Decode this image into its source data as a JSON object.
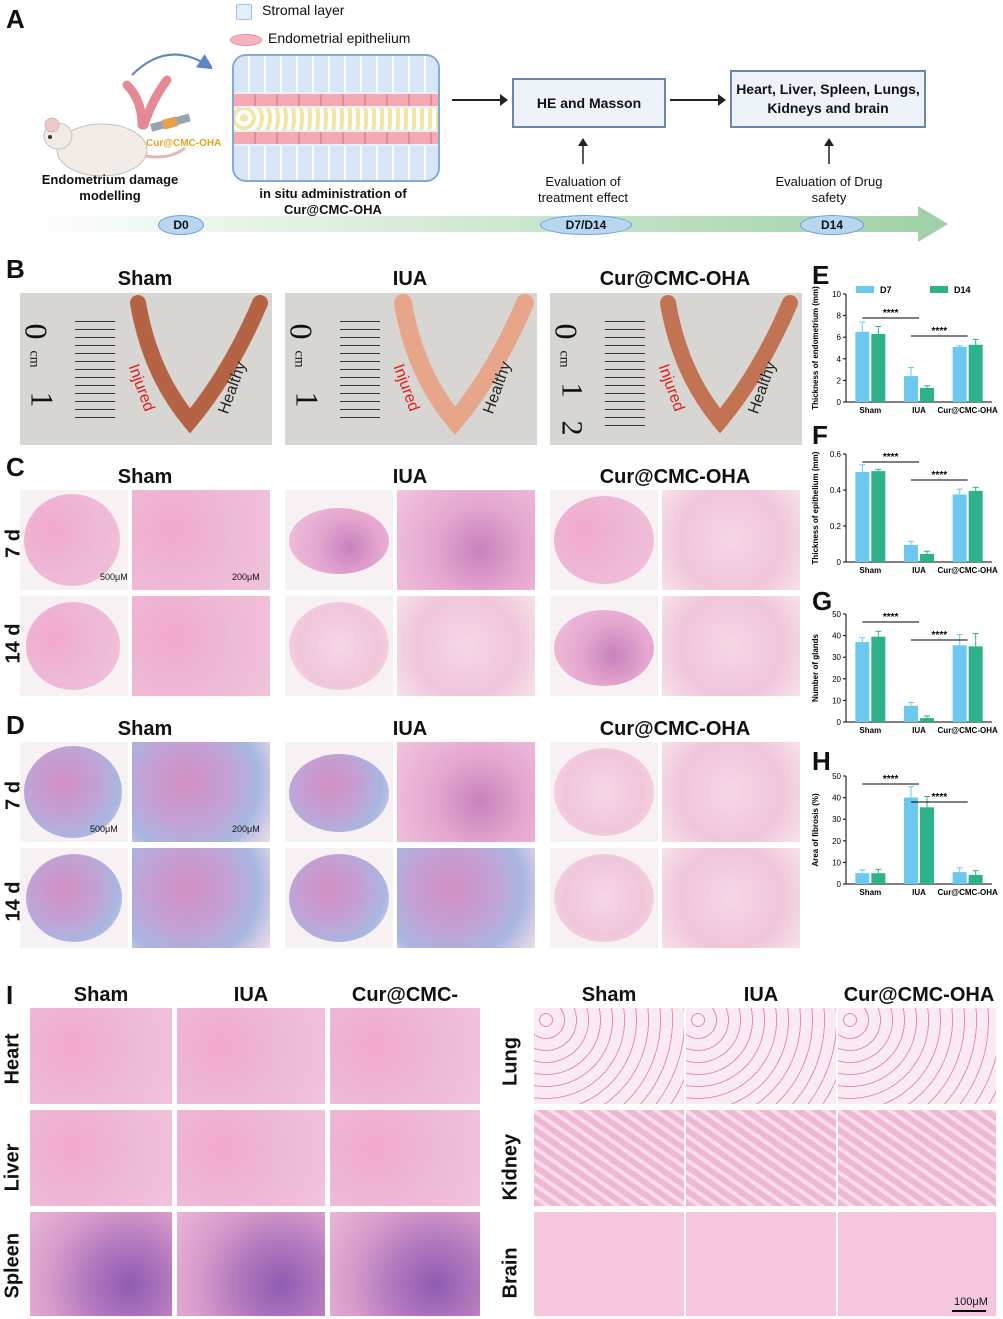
{
  "panels": {
    "A": {
      "label": "A",
      "legend": {
        "stromal": "Stromal layer",
        "epithelium": "Endometrial epithelium"
      },
      "syringe_label": "Cur@CMC-OHA",
      "mouse_caption": "Endometrium damage modelling",
      "insitu_caption": "in situ administration of Cur@CMC-OHA",
      "box_he": "HE and Masson",
      "box_organs": "Heart, Liver, Spleen, Lungs, Kidneys and brain",
      "eval_treatment": "Evaluation of treatment effect",
      "eval_drug": "Evaluation of Drug safety",
      "timeline": [
        "D0",
        "D7/D14",
        "D14"
      ],
      "colors": {
        "timeline": "#9fd0a5",
        "box_border": "#6d86ab",
        "syringe_text": "#e6a21f"
      }
    },
    "B": {
      "label": "B",
      "headers": [
        "Sham",
        "IUA",
        "Cur@CMC-OHA"
      ],
      "ruler_unit": "cm",
      "ruler_ticks": [
        "0",
        "1",
        "2"
      ],
      "injured": "Injured",
      "healthy": "Healthy"
    },
    "C": {
      "label": "C",
      "headers": [
        "Sham",
        "IUA",
        "Cur@CMC-OHA"
      ],
      "rows": [
        "7 d",
        "14 d"
      ],
      "scale_large": "500μM",
      "scale_small": "200μM"
    },
    "D": {
      "label": "D",
      "headers": [
        "Sham",
        "IUA",
        "Cur@CMC-OHA"
      ],
      "rows": [
        "7 d",
        "14 d"
      ],
      "scale_large": "500μM",
      "scale_small": "200μM"
    },
    "I": {
      "label": "I",
      "headers_left": [
        "Sham",
        "IUA",
        "Cur@CMC-OHA"
      ],
      "headers_right": [
        "Sham",
        "IUA",
        "Cur@CMC-OHA"
      ],
      "rows_left": [
        "Heart",
        "Liver",
        "Spleen"
      ],
      "rows_right": [
        "Lung",
        "Kidney",
        "Brain"
      ],
      "scale": "100μM"
    }
  },
  "chart_data": [
    {
      "panel": "E",
      "type": "bar",
      "categories": [
        "Sham",
        "IUA",
        "Cur@CMC-OHA"
      ],
      "series": [
        {
          "name": "D7",
          "values": [
            6.5,
            2.4,
            5.1
          ],
          "errors": [
            0.9,
            0.8,
            0.1
          ]
        },
        {
          "name": "D14",
          "values": [
            6.3,
            1.3,
            5.3
          ],
          "errors": [
            0.7,
            0.2,
            0.5
          ]
        }
      ],
      "ylabel": "Thickness of endometrium (mm)",
      "ylim": [
        0,
        10
      ],
      "yticks": [
        0,
        2,
        4,
        6,
        8,
        10
      ],
      "legend": "top",
      "significance": [
        {
          "from": 0,
          "to": 1,
          "text": "****"
        },
        {
          "from": 1,
          "to": 2,
          "text": "****"
        }
      ]
    },
    {
      "panel": "F",
      "type": "bar",
      "categories": [
        "Sham",
        "IUA",
        "Cur@CMC-OHA"
      ],
      "series": [
        {
          "name": "D7",
          "values": [
            0.5,
            0.095,
            0.375
          ],
          "errors": [
            0.04,
            0.02,
            0.03
          ]
        },
        {
          "name": "D14",
          "values": [
            0.505,
            0.045,
            0.395
          ],
          "errors": [
            0.01,
            0.015,
            0.02
          ]
        }
      ],
      "ylabel": "Thickness of epithelium (mm)",
      "ylim": [
        0,
        0.6
      ],
      "yticks": [
        0.0,
        0.2,
        0.4,
        0.6
      ],
      "significance": [
        {
          "from": 0,
          "to": 1,
          "text": "****"
        },
        {
          "from": 1,
          "to": 2,
          "text": "****"
        }
      ]
    },
    {
      "panel": "G",
      "type": "bar",
      "categories": [
        "Sham",
        "IUA",
        "Cur@CMC-OHA"
      ],
      "series": [
        {
          "name": "D7",
          "values": [
            37,
            7.5,
            35.5
          ],
          "errors": [
            2,
            1.5,
            5
          ]
        },
        {
          "name": "D14",
          "values": [
            39.5,
            1.8,
            35
          ],
          "errors": [
            2.5,
            1,
            6
          ]
        }
      ],
      "ylabel": "Number of glands",
      "ylim": [
        0,
        50
      ],
      "yticks": [
        0,
        10,
        20,
        30,
        40,
        50
      ],
      "significance": [
        {
          "from": 0,
          "to": 1,
          "text": "****"
        },
        {
          "from": 1,
          "to": 2,
          "text": "****"
        }
      ]
    },
    {
      "panel": "H",
      "type": "bar",
      "categories": [
        "Sham",
        "IUA",
        "Cur@CMC-OHA"
      ],
      "series": [
        {
          "name": "D7",
          "values": [
            5,
            40,
            5.5
          ],
          "errors": [
            1.5,
            5,
            2
          ]
        },
        {
          "name": "D14",
          "values": [
            5,
            35.5,
            4.2
          ],
          "errors": [
            1.8,
            5,
            2
          ]
        }
      ],
      "ylabel": "Area of fibrosis (%)",
      "ylim": [
        0,
        50
      ],
      "yticks": [
        0,
        10,
        20,
        30,
        40,
        50
      ],
      "significance": [
        {
          "from": 0,
          "to": 1,
          "text": "****"
        },
        {
          "from": 1,
          "to": 2,
          "text": "****"
        }
      ]
    }
  ],
  "chart_colors": {
    "D7": "#6cc8ef",
    "D14": "#2db28b"
  }
}
